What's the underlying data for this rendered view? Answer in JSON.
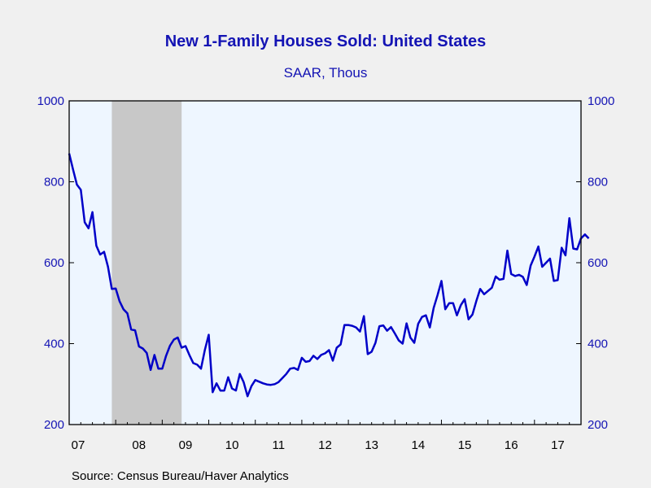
{
  "chart_data": {
    "type": "line",
    "title": "New 1-Family Houses Sold: United States",
    "subtitle": "SAAR, Thous",
    "source": "Source:  Census Bureau/Haver Analytics",
    "ylim": [
      200,
      1000
    ],
    "y_ticks": [
      "200",
      "400",
      "600",
      "800",
      "1000"
    ],
    "x_ticks": [
      "07",
      "08",
      "09",
      "10",
      "11",
      "12",
      "13",
      "14",
      "15",
      "16",
      "17"
    ],
    "x_range": [
      "2007-01",
      "2017-12"
    ],
    "recession": {
      "start": "2007-12",
      "end": "2009-06"
    },
    "colors": {
      "line": "#0000c8",
      "plot_bg": "#eef6ff",
      "recession": "#c8c8c8",
      "text": "#1414b4"
    },
    "series": [
      {
        "values": [
          870,
          830,
          793,
          780,
          700,
          685,
          725,
          642,
          620,
          627,
          590,
          535,
          536,
          505,
          485,
          475,
          435,
          433,
          393,
          388,
          377,
          335,
          372,
          338,
          338,
          370,
          395,
          410,
          415,
          390,
          394,
          372,
          352,
          348,
          338,
          385,
          422,
          280,
          302,
          284,
          284,
          317,
          289,
          284,
          325,
          305,
          270,
          295,
          310,
          306,
          302,
          299,
          298,
          300,
          305,
          315,
          325,
          338,
          340,
          335,
          365,
          355,
          357,
          370,
          362,
          372,
          376,
          384,
          358,
          390,
          398,
          446,
          446,
          444,
          440,
          430,
          468,
          374,
          380,
          402,
          443,
          445,
          432,
          441,
          425,
          408,
          400,
          450,
          415,
          402,
          449,
          466,
          470,
          440,
          488,
          520,
          555,
          485,
          500,
          500,
          470,
          495,
          510,
          460,
          472,
          505,
          535,
          522,
          530,
          538,
          566,
          558,
          560,
          630,
          572,
          567,
          570,
          565,
          545,
          593,
          615,
          640,
          590,
          600,
          610,
          555,
          557,
          637,
          618,
          710,
          635,
          633
        ],
        "tail": [
          660,
          670,
          660
        ]
      }
    ]
  }
}
